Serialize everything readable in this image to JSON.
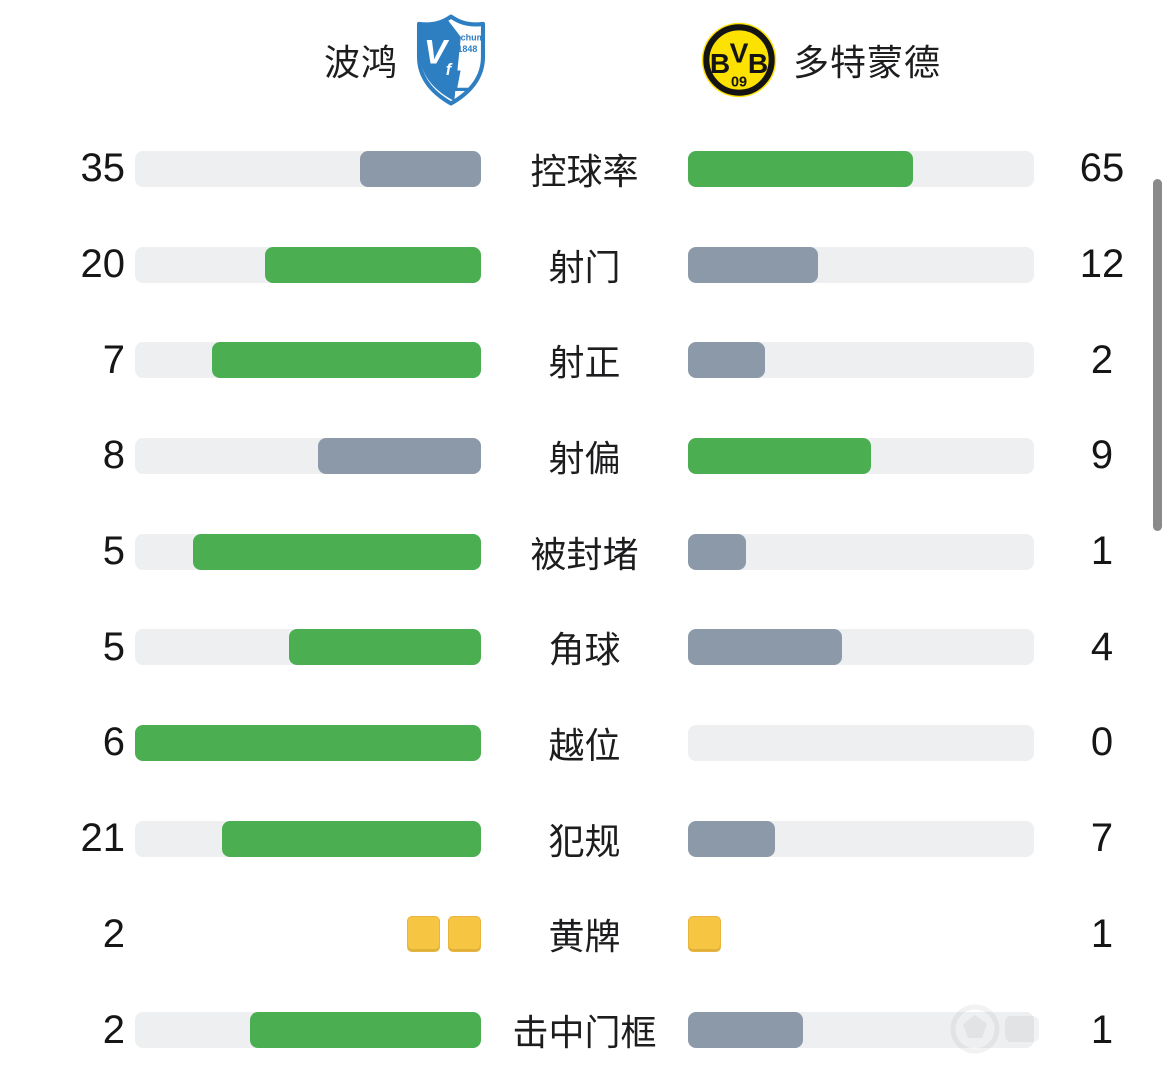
{
  "header": {
    "home_name": "波鸿",
    "away_name": "多特蒙德",
    "home_crest": {
      "monogram_v": "V",
      "monogram_f": "f",
      "monogram_l": "L",
      "club": "Bochum",
      "year": "1848"
    },
    "away_crest": {
      "b_left": "B",
      "v_mid": "V",
      "b_right": "B",
      "year": "09"
    }
  },
  "icons": {
    "home_logo": "vfl-bochum-crest",
    "away_logo": "bvb-09-badge",
    "watermark": "faint-app-watermark",
    "scrollbar": "vertical-scrollbar-thumb"
  },
  "colors": {
    "green": "#4bae50",
    "slate": "#8c99a9",
    "track": "#edeff1",
    "card_yellow": "#f6c643",
    "card_border": "#e9b43c",
    "bvb_yellow": "#fde100",
    "bochum_blue": "#2e7fc2",
    "text_dark": "#1d1d1f",
    "scrollbar_gray": "#8a8a8a"
  },
  "stats": [
    {
      "label": "控球率",
      "home": 35,
      "away": 65,
      "type": "bar"
    },
    {
      "label": "射门",
      "home": 20,
      "away": 12,
      "type": "bar"
    },
    {
      "label": "射正",
      "home": 7,
      "away": 2,
      "type": "bar"
    },
    {
      "label": "射偏",
      "home": 8,
      "away": 9,
      "type": "bar"
    },
    {
      "label": "被封堵",
      "home": 5,
      "away": 1,
      "type": "bar"
    },
    {
      "label": "角球",
      "home": 5,
      "away": 4,
      "type": "bar"
    },
    {
      "label": "越位",
      "home": 6,
      "away": 0,
      "type": "bar"
    },
    {
      "label": "犯规",
      "home": 21,
      "away": 7,
      "type": "bar"
    },
    {
      "label": "黄牌",
      "home": 2,
      "away": 1,
      "type": "cards"
    },
    {
      "label": "击中门框",
      "home": 2,
      "away": 1,
      "type": "bar"
    }
  ],
  "chart_data": {
    "type": "bar",
    "subtype": "paired-horizontal-comparison",
    "teams": [
      "波鸿",
      "多特蒙德"
    ],
    "categories": [
      "控球率",
      "射门",
      "射正",
      "射偏",
      "被封堵",
      "角球",
      "越位",
      "犯规",
      "黄牌",
      "击中门框"
    ],
    "series": [
      {
        "name": "波鸿",
        "values": [
          35,
          20,
          7,
          8,
          5,
          5,
          6,
          21,
          2,
          2
        ]
      },
      {
        "name": "多特蒙德",
        "values": [
          65,
          12,
          2,
          9,
          1,
          4,
          0,
          7,
          1,
          1
        ]
      }
    ],
    "bar_fill_rule": "bar width = value/(home+away) of row; larger value colored green, smaller gray-slate; zero = empty track; yellow-card row rendered as yellow card icons instead of bars",
    "legend_position": "top",
    "grid": false
  }
}
